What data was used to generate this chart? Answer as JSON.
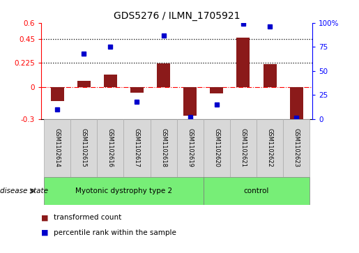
{
  "title": "GDS5276 / ILMN_1705921",
  "samples": [
    "GSM1102614",
    "GSM1102615",
    "GSM1102616",
    "GSM1102617",
    "GSM1102618",
    "GSM1102619",
    "GSM1102620",
    "GSM1102621",
    "GSM1102622",
    "GSM1102623"
  ],
  "transformed_count": [
    -0.13,
    0.055,
    0.115,
    -0.055,
    0.22,
    -0.27,
    -0.06,
    0.46,
    0.21,
    -0.32
  ],
  "percentile_rank": [
    10,
    68,
    75,
    18,
    87,
    2,
    15,
    99,
    96,
    1
  ],
  "group1_indices": [
    0,
    1,
    2,
    3,
    4,
    5
  ],
  "group2_indices": [
    6,
    7,
    8,
    9
  ],
  "group1_label": "Myotonic dystrophy type 2",
  "group2_label": "control",
  "group_color": "#77ee77",
  "bar_color": "#8B1A1A",
  "dot_color": "#0000CC",
  "ylim_left": [
    -0.3,
    0.6
  ],
  "ylim_right": [
    0,
    100
  ],
  "yticks_left": [
    -0.3,
    0.0,
    0.225,
    0.45,
    0.6
  ],
  "ytick_labels_left": [
    "-0.3",
    "0",
    "0.225",
    "0.45",
    "0.6"
  ],
  "yticks_right": [
    0,
    25,
    50,
    75,
    100
  ],
  "ytick_labels_right": [
    "0",
    "25",
    "50",
    "75",
    "100%"
  ],
  "hlines": [
    0.225,
    0.45
  ],
  "zero_line": 0.0,
  "bar_width": 0.5,
  "figsize": [
    5.15,
    3.63
  ],
  "dpi": 100
}
